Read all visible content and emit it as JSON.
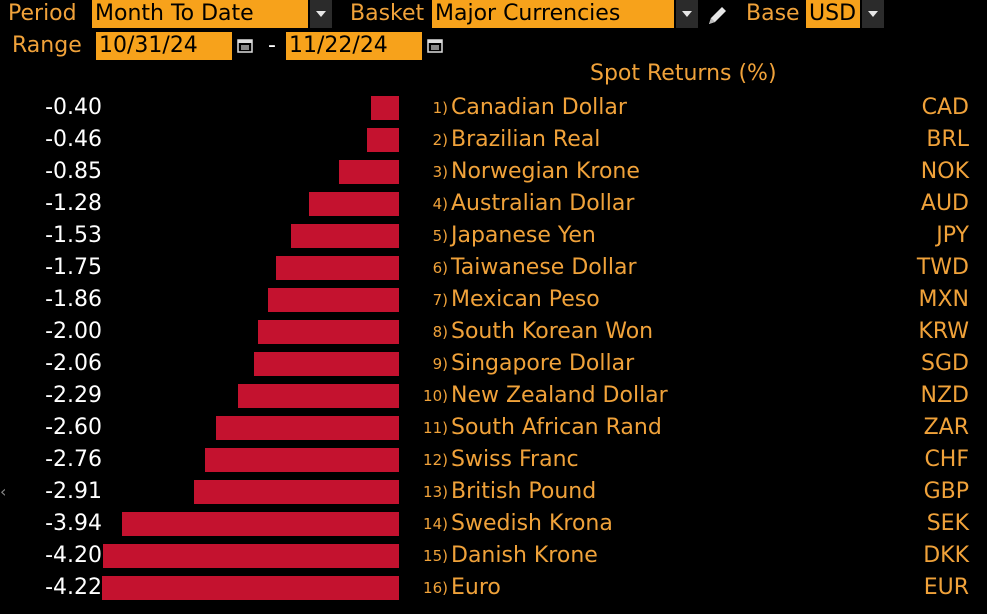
{
  "header": {
    "period_label": "Period",
    "period_value": "Month To Date",
    "basket_label": "Basket",
    "basket_value": "Major Currencies",
    "base_label": "Base",
    "base_value": "USD",
    "range_label": "Range",
    "range_start": "10/31/24",
    "range_sep": "-",
    "range_end": "11/22/24"
  },
  "chart_data": {
    "type": "bar",
    "title": "Spot Returns (%)",
    "categories": [
      "Canadian Dollar",
      "Brazilian Real",
      "Norwegian Krone",
      "Australian Dollar",
      "Japanese Yen",
      "Taiwanese Dollar",
      "Mexican Peso",
      "South Korean Won",
      "Singapore Dollar",
      "New Zealand Dollar",
      "South African Rand",
      "Swiss Franc",
      "British Pound",
      "Swedish Krona",
      "Danish Krone",
      "Euro"
    ],
    "values": [
      -0.4,
      -0.46,
      -0.85,
      -1.28,
      -1.53,
      -1.75,
      -1.86,
      -2.0,
      -2.06,
      -2.29,
      -2.6,
      -2.76,
      -2.91,
      -3.94,
      -4.2,
      -4.22
    ],
    "rows": [
      {
        "rank": "1)",
        "name": "Canadian Dollar",
        "code": "CAD",
        "value_text": "-0.40"
      },
      {
        "rank": "2)",
        "name": "Brazilian Real",
        "code": "BRL",
        "value_text": "-0.46"
      },
      {
        "rank": "3)",
        "name": "Norwegian Krone",
        "code": "NOK",
        "value_text": "-0.85"
      },
      {
        "rank": "4)",
        "name": "Australian Dollar",
        "code": "AUD",
        "value_text": "-1.28"
      },
      {
        "rank": "5)",
        "name": "Japanese Yen",
        "code": "JPY",
        "value_text": "-1.53"
      },
      {
        "rank": "6)",
        "name": "Taiwanese Dollar",
        "code": "TWD",
        "value_text": "-1.75"
      },
      {
        "rank": "7)",
        "name": "Mexican Peso",
        "code": "MXN",
        "value_text": "-1.86"
      },
      {
        "rank": "8)",
        "name": "South Korean Won",
        "code": "KRW",
        "value_text": "-2.00"
      },
      {
        "rank": "9)",
        "name": "Singapore Dollar",
        "code": "SGD",
        "value_text": "-2.06"
      },
      {
        "rank": "10)",
        "name": "New Zealand Dollar",
        "code": "NZD",
        "value_text": "-2.29"
      },
      {
        "rank": "11)",
        "name": "South African Rand",
        "code": "ZAR",
        "value_text": "-2.60"
      },
      {
        "rank": "12)",
        "name": "Swiss Franc",
        "code": "CHF",
        "value_text": "-2.76"
      },
      {
        "rank": "13)",
        "name": "British Pound",
        "code": "GBP",
        "value_text": "-2.91"
      },
      {
        "rank": "14)",
        "name": "Swedish Krona",
        "code": "SEK",
        "value_text": "-3.94"
      },
      {
        "rank": "15)",
        "name": "Danish Krone",
        "code": "DKK",
        "value_text": "-4.20"
      },
      {
        "rank": "16)",
        "name": "Euro",
        "code": "EUR",
        "value_text": "-4.22"
      }
    ],
    "bar_color": "#c4122f"
  },
  "edge_marker": "‹"
}
